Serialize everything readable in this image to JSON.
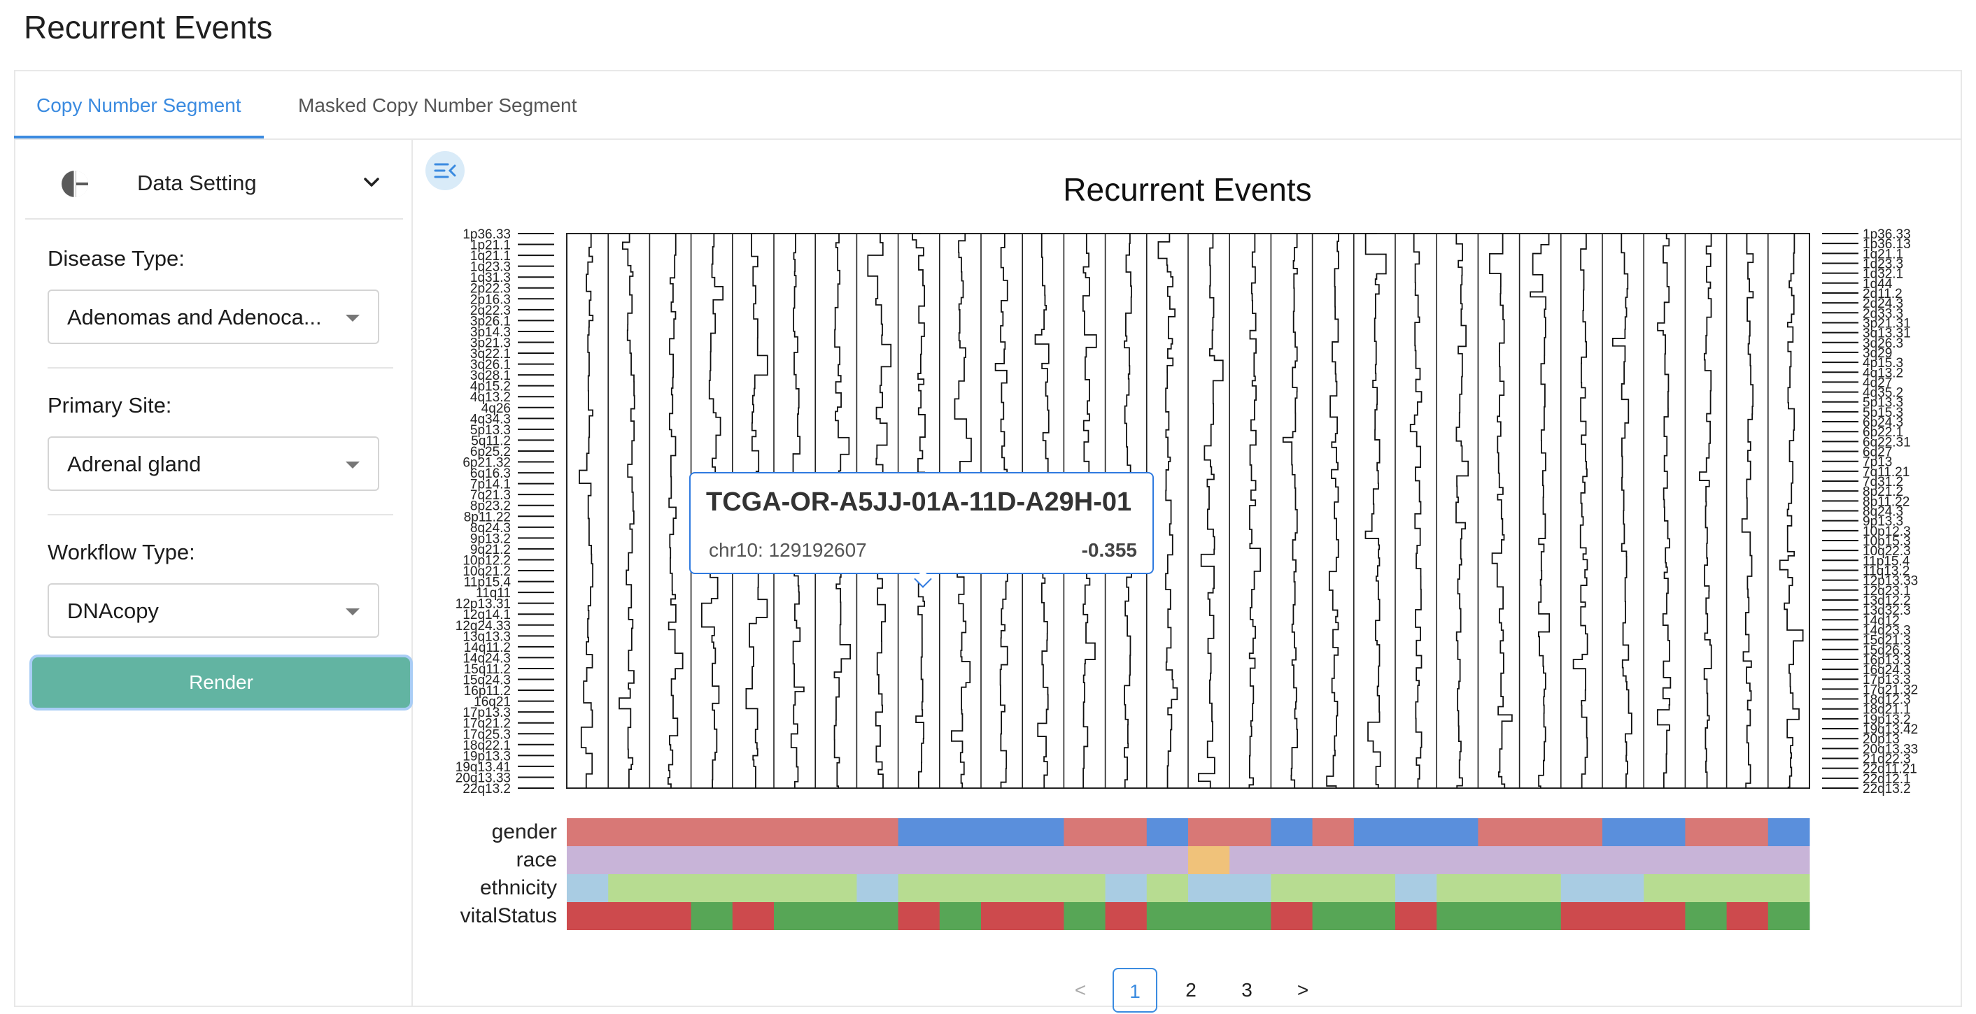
{
  "page": {
    "title": "Recurrent Events"
  },
  "tabs": [
    {
      "label": "Copy Number Segment",
      "active": true
    },
    {
      "label": "Masked Copy Number Segment",
      "active": false
    }
  ],
  "sidebar": {
    "data_setting_label": "Data Setting",
    "icons": {
      "section": "pie-chart-icon",
      "toggle": "chevron-down-icon"
    },
    "fields": [
      {
        "label": "Disease Type:",
        "value": "Adenomas and Adenoca..."
      },
      {
        "label": "Primary Site:",
        "value": "Adrenal gland"
      },
      {
        "label": "Workflow Type:",
        "value": "DNAcopy"
      }
    ],
    "render_button": "Render"
  },
  "main": {
    "collapse_icon": "collapse-sidebar-icon",
    "chart_title": "Recurrent Events"
  },
  "tooltip": {
    "sample": "TCGA-OR-A5JJ-01A-11D-A29H-01",
    "position": "chr10: 129192607",
    "value": "-0.355"
  },
  "pagination": {
    "prev": "<",
    "pages": [
      "1",
      "2",
      "3"
    ],
    "current": "1",
    "next": ">"
  },
  "chart_data": {
    "type": "heatmap",
    "title": "Recurrent Events",
    "samples_count": 30,
    "left_cytobands": [
      "1p36.33",
      "1p21.1",
      "1q21.1",
      "1q23.3",
      "1q31.3",
      "2p22.3",
      "2p16.3",
      "2q22.3",
      "3p26.1",
      "3p14.3",
      "3p21.3",
      "3q22.1",
      "3q26.1",
      "3q28.1",
      "4p15.2",
      "4q13.2",
      "4q26",
      "4q34.3",
      "5p13.3",
      "5q11.2",
      "6p25.2",
      "6p21.32",
      "6q16.3",
      "7p14.1",
      "7q21.3",
      "8p23.2",
      "8p11.22",
      "8q24.3",
      "9p13.2",
      "9q21.2",
      "10p12.2",
      "10q21.2",
      "11p15.4",
      "11q11",
      "12p13.31",
      "12q14.1",
      "12q24.33",
      "13q13.3",
      "14q11.2",
      "14q24.3",
      "15q11.2",
      "15q24.3",
      "16p11.2",
      "16q21",
      "17p13.3",
      "17q21.2",
      "17q25.3",
      "18q22.1",
      "19p13.3",
      "19q13.41",
      "20q13.33",
      "22q13.2"
    ],
    "right_cytobands": [
      "1p36.33",
      "1p36.13",
      "1q21.1",
      "1q23.3",
      "1q32.1",
      "1q44",
      "2q11.2",
      "2q24.3",
      "2q33.3",
      "3p21.31",
      "3q13.31",
      "3q26.3",
      "3q29",
      "4p15.3",
      "4q13.2",
      "4q27",
      "4q35.2",
      "5p13.3",
      "5p15.3",
      "6p24.3",
      "6p22.1",
      "6q22.31",
      "6q27",
      "7p13",
      "7q11.21",
      "7q31.2",
      "8p21.2",
      "8p11.22",
      "8q24.3",
      "9p13.3",
      "10p12.3",
      "10p15.3",
      "10q22.3",
      "11p15.4",
      "11q13.2",
      "12p13.33",
      "12q23.1",
      "13q12.2",
      "13q32.3",
      "14q12",
      "14q23.3",
      "15q21.3",
      "15q26.3",
      "16p13.3",
      "16q24.3",
      "17p13.3",
      "17q21.32",
      "18q12.3",
      "18q21.1",
      "19p13.2",
      "19q13.42",
      "20p13",
      "20q13.33",
      "21q22.3",
      "22q11.21",
      "22q12.1",
      "22q13.2"
    ],
    "annotation_tracks": [
      {
        "name": "gender",
        "segments": [
          {
            "value": "female",
            "span": 8
          },
          {
            "value": "male",
            "span": 4
          },
          {
            "value": "female",
            "span": 2
          },
          {
            "value": "male",
            "span": 1
          },
          {
            "value": "female",
            "span": 2
          },
          {
            "value": "male",
            "span": 1
          },
          {
            "value": "female",
            "span": 1
          },
          {
            "value": "male",
            "span": 3
          },
          {
            "value": "female",
            "span": 3
          },
          {
            "value": "male",
            "span": 2
          },
          {
            "value": "female",
            "span": 2
          },
          {
            "value": "male",
            "span": 1
          }
        ]
      },
      {
        "name": "race",
        "segments": [
          {
            "value": "white",
            "span": 15
          },
          {
            "value": "asian",
            "span": 1
          },
          {
            "value": "white",
            "span": 14
          }
        ]
      },
      {
        "name": "ethnicity",
        "segments": [
          {
            "value": "not reported",
            "span": 1
          },
          {
            "value": "not hispanic",
            "span": 6
          },
          {
            "value": "not reported",
            "span": 1
          },
          {
            "value": "not hispanic",
            "span": 5
          },
          {
            "value": "not reported",
            "span": 1
          },
          {
            "value": "not hispanic",
            "span": 1
          },
          {
            "value": "not reported",
            "span": 2
          },
          {
            "value": "not hispanic",
            "span": 3
          },
          {
            "value": "not reported",
            "span": 1
          },
          {
            "value": "not hispanic",
            "span": 3
          },
          {
            "value": "not reported",
            "span": 2
          },
          {
            "value": "not hispanic",
            "span": 4
          }
        ]
      },
      {
        "name": "vitalStatus",
        "segments": [
          {
            "value": "dead",
            "span": 3
          },
          {
            "value": "alive",
            "span": 1
          },
          {
            "value": "dead",
            "span": 1
          },
          {
            "value": "alive",
            "span": 3
          },
          {
            "value": "dead",
            "span": 1
          },
          {
            "value": "alive",
            "span": 1
          },
          {
            "value": "dead",
            "span": 2
          },
          {
            "value": "alive",
            "span": 1
          },
          {
            "value": "dead",
            "span": 1
          },
          {
            "value": "alive",
            "span": 3
          },
          {
            "value": "dead",
            "span": 1
          },
          {
            "value": "alive",
            "span": 2
          },
          {
            "value": "dead",
            "span": 1
          },
          {
            "value": "alive",
            "span": 3
          },
          {
            "value": "dead",
            "span": 3
          },
          {
            "value": "alive",
            "span": 1
          },
          {
            "value": "dead",
            "span": 1
          },
          {
            "value": "alive",
            "span": 1
          }
        ]
      }
    ],
    "colors": {
      "female": "#d87876",
      "male": "#5a8fdc",
      "white": "#c8b4d8",
      "asian": "#f0c27a",
      "not hispanic": "#b7dc91",
      "not reported": "#a9cce3",
      "dead": "#cd4a4d",
      "alive": "#57a656"
    }
  }
}
